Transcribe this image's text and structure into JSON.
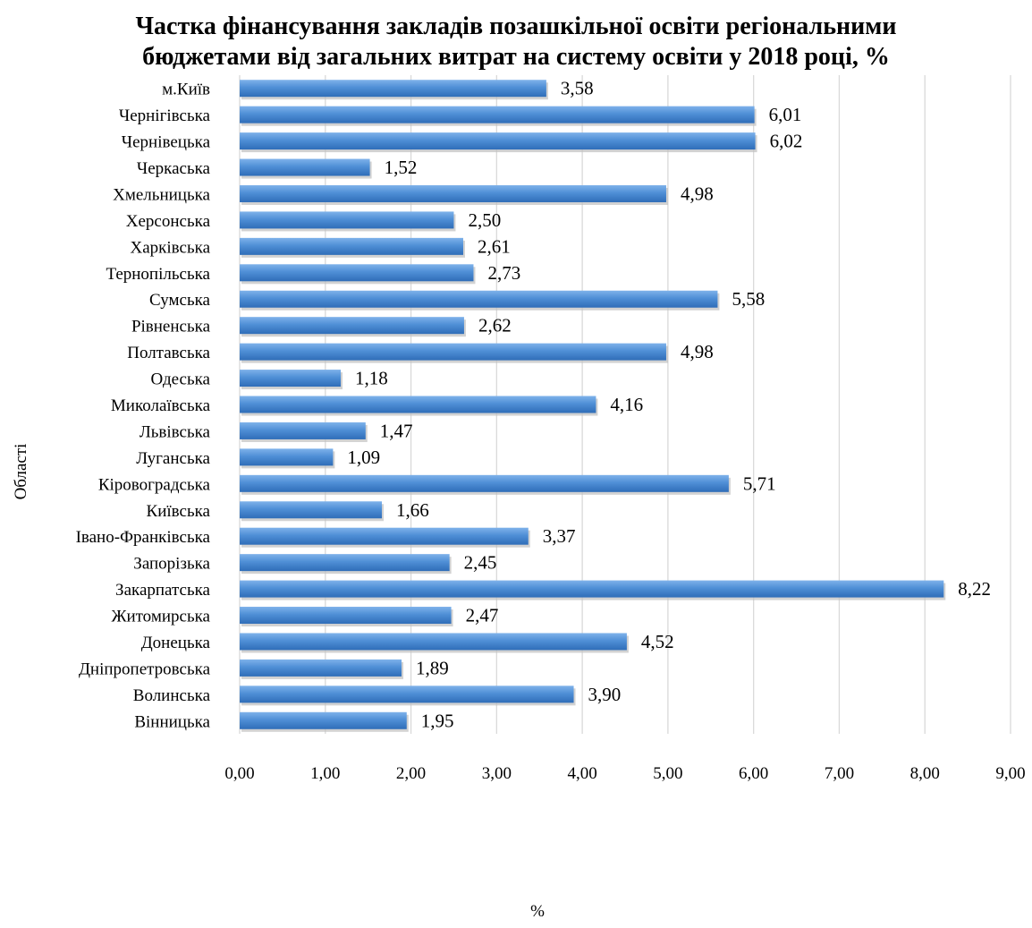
{
  "chart_data": {
    "type": "bar",
    "orientation": "horizontal",
    "title": "Частка фінансування закладів позашкільної освіти регіональними бюджетами від загальних витрат на систему освіти у 2018 році, %",
    "title_lines": [
      "Частка фінансування закладів позашкільної освіти регіональними",
      "бюджетами від загальних витрат на систему освіти у 2018 році, %"
    ],
    "xlabel": "%",
    "ylabel": "Області",
    "xlim": [
      0,
      9
    ],
    "xticks": [
      "0,00",
      "1,00",
      "2,00",
      "3,00",
      "4,00",
      "5,00",
      "6,00",
      "7,00",
      "8,00",
      "9,00"
    ],
    "grid": true,
    "bar_color": "#4f8fd6",
    "categories": [
      "м.Київ",
      "Чернігівська",
      "Чернівецька",
      "Черкаська",
      "Хмельницька",
      "Херсонська",
      "Харківська",
      "Тернопільська",
      "Сумська",
      "Рівненська",
      "Полтавська",
      "Одеська",
      "Миколаївська",
      "Львівська",
      "Луганська",
      "Кіровоградська",
      "Київська",
      "Івано-Франківська",
      "Запорізька",
      "Закарпатська",
      "Житомирська",
      "Донецька",
      "Дніпропетровська",
      "Волинська",
      "Вінницька"
    ],
    "values": [
      3.58,
      6.01,
      6.02,
      1.52,
      4.98,
      2.5,
      2.61,
      2.73,
      5.58,
      2.62,
      4.98,
      1.18,
      4.16,
      1.47,
      1.09,
      5.71,
      1.66,
      3.37,
      2.45,
      8.22,
      2.47,
      4.52,
      1.89,
      3.9,
      1.95
    ],
    "data_labels": [
      "3,58",
      "6,01",
      "6,02",
      "1,52",
      "4,98",
      "2,50",
      "2,61",
      "2,73",
      "5,58",
      "2,62",
      "4,98",
      "1,18",
      "4,16",
      "1,47",
      "1,09",
      "5,71",
      "1,66",
      "3,37",
      "2,45",
      "8,22",
      "2,47",
      "4,52",
      "1,89",
      "3,90",
      "1,95"
    ]
  }
}
